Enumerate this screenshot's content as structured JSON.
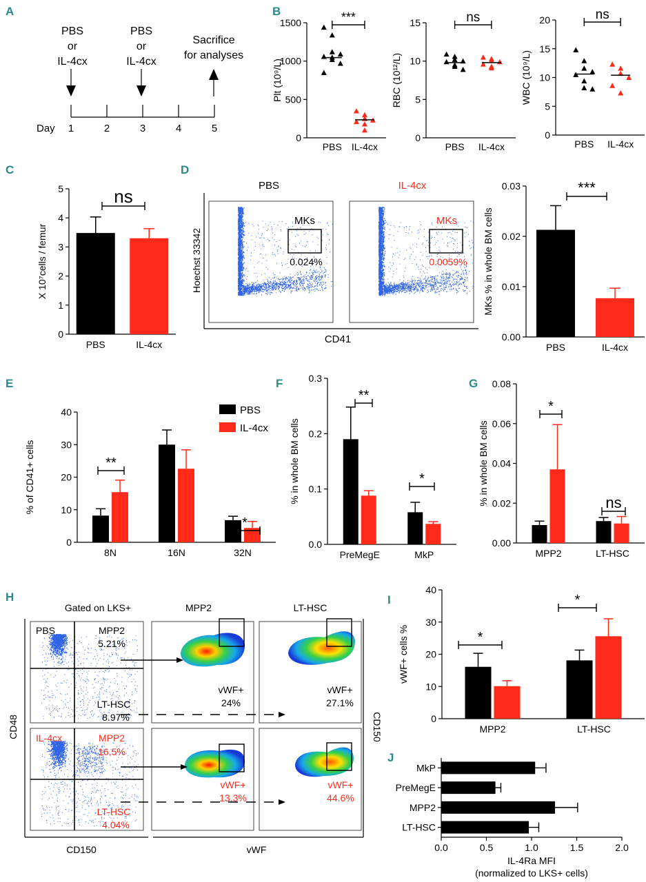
{
  "colors": {
    "pbs": "#000000",
    "il4cx": "#ff2a1a",
    "label": "#2a8a8a",
    "flow": "#2f63e8"
  },
  "panel_labels": [
    "A",
    "B",
    "C",
    "D",
    "E",
    "F",
    "G",
    "H",
    "I",
    "J"
  ],
  "timeline": {
    "inj1": [
      "PBS",
      "or",
      "IL-4cx"
    ],
    "inj2": [
      "PBS",
      "or",
      "IL-4cx"
    ],
    "sac": [
      "Sacrifice",
      "for analyses"
    ],
    "day_label": "Day",
    "days": [
      "1",
      "2",
      "3",
      "4",
      "5"
    ]
  },
  "flowD": {
    "pbs_title": "PBS",
    "il4_title": "IL-4cx",
    "gate_label_pbs": "MKs",
    "gate_label_il4": "MKs",
    "pct_pbs": "0.024%",
    "pct_il4": "0.0059%",
    "ylabel": "Hoechst 33342",
    "xlabel": "CD41"
  },
  "flowH": {
    "gated_on": "Gated on LKS+",
    "mpp2_col": "MPP2",
    "lthsc_col": "LT-HSC",
    "pbs_tag": "PBS",
    "il4_tag": "IL-4cx",
    "pbs_mpp2": [
      "MPP2",
      "5.21%"
    ],
    "pbs_lthsc": [
      "LT-HSC",
      "8.97%"
    ],
    "il4_mpp2": [
      "MPP2",
      "16.5%"
    ],
    "il4_lthsc": [
      "LT-HSC",
      "4.04%"
    ],
    "vwf_pbs_mpp2": [
      "vWF+",
      "24%"
    ],
    "vwf_pbs_lthsc": [
      "vWF+",
      "27.1%"
    ],
    "vwf_il4_mpp2": [
      "vWF+",
      "13.3%"
    ],
    "vwf_il4_lthsc": [
      "vWF+",
      "44.6%"
    ],
    "ylabel": "CD48",
    "xlabel": "CD150",
    "vwf_xlabel": "vWF",
    "right_ylabel": "CD150"
  },
  "chart_data": [
    {
      "id": "B1",
      "type": "scatter",
      "ylabel": "Plt (10⁹/L)",
      "ylim": [
        0,
        1500
      ],
      "yticks": [
        0,
        500,
        1000,
        1500
      ],
      "categories": [
        "PBS",
        "IL-4cx"
      ],
      "sig": "***",
      "series": [
        {
          "name": "PBS",
          "values": [
            1440,
            1340,
            1120,
            1090,
            1060,
            1050,
            1020,
            970,
            850
          ],
          "mean": 1045
        },
        {
          "name": "IL-4cx",
          "values": [
            350,
            300,
            250,
            230,
            210,
            180,
            100
          ],
          "mean": 235
        }
      ]
    },
    {
      "id": "B2",
      "type": "scatter",
      "ylabel": "RBC (10¹²/L)",
      "ylim": [
        0,
        15
      ],
      "yticks": [
        0,
        5,
        10,
        15
      ],
      "categories": [
        "PBS",
        "IL-4cx"
      ],
      "sig": "ns",
      "series": [
        {
          "name": "PBS",
          "values": [
            10.9,
            10.6,
            10.2,
            10.0,
            9.9,
            9.5,
            9.3,
            8.9
          ],
          "mean": 9.8
        },
        {
          "name": "IL-4cx",
          "values": [
            10.5,
            10.3,
            10.1,
            9.9,
            9.6,
            9.3,
            9.1
          ],
          "mean": 9.8
        }
      ]
    },
    {
      "id": "B3",
      "type": "scatter",
      "ylabel": "WBC (10⁹/L)",
      "ylim": [
        0,
        20
      ],
      "yticks": [
        0,
        5,
        10,
        15,
        20
      ],
      "categories": [
        "PBS",
        "IL-4cx"
      ],
      "sig": "ns",
      "series": [
        {
          "name": "PBS",
          "values": [
            14.8,
            12.9,
            11.6,
            11.0,
            10.5,
            9.4,
            8.2,
            8.0
          ],
          "mean": 10.6
        },
        {
          "name": "IL-4cx",
          "values": [
            12.3,
            11.6,
            10.7,
            10.0,
            8.6,
            7.3
          ],
          "mean": 10.4
        }
      ]
    },
    {
      "id": "C",
      "type": "bar",
      "ylabel": "X 10⁷cells / femur",
      "ylim": [
        0,
        5
      ],
      "yticks": [
        0,
        1,
        2,
        3,
        4,
        5
      ],
      "categories": [
        "PBS",
        "IL-4cx"
      ],
      "sig": "ns",
      "values": [
        3.48,
        3.3
      ],
      "errors": [
        0.55,
        0.33
      ]
    },
    {
      "id": "D",
      "type": "bar",
      "ylabel": "MKs % in whole BM cells",
      "ylim": [
        0,
        0.03
      ],
      "yticks": [
        "0.00",
        "0.01",
        "0.02",
        "0.03"
      ],
      "categories": [
        "PBS",
        "IL-4cx"
      ],
      "sig": "***",
      "values": [
        0.0213,
        0.0077
      ],
      "errors": [
        0.0048,
        0.002
      ]
    },
    {
      "id": "E",
      "type": "bar",
      "ylabel": "% of CD41+ cells",
      "ylim": [
        0,
        40
      ],
      "yticks": [
        0,
        10,
        20,
        30,
        40
      ],
      "categories": [
        "8N",
        "16N",
        "32N"
      ],
      "legend": [
        "PBS",
        "IL-4cx"
      ],
      "series": [
        {
          "name": "PBS",
          "values": [
            8.2,
            30,
            6.8
          ],
          "errors": [
            2.1,
            4.5,
            1.2
          ]
        },
        {
          "name": "IL-4cx",
          "values": [
            15.4,
            22.6,
            4.4
          ],
          "errors": [
            3.7,
            5.8,
            2.0
          ]
        }
      ],
      "sig": [
        "**",
        "",
        "*"
      ]
    },
    {
      "id": "F",
      "type": "bar",
      "ylabel": "% in whole BM cells",
      "ylim": [
        0,
        0.3
      ],
      "yticks": [
        "0.0",
        "0.1",
        "0.2",
        "0.3"
      ],
      "categories": [
        "PreMegE",
        "MkP"
      ],
      "series": [
        {
          "name": "PBS",
          "values": [
            0.19,
            0.058
          ],
          "errors": [
            0.058,
            0.018
          ]
        },
        {
          "name": "IL-4cx",
          "values": [
            0.088,
            0.037
          ],
          "errors": [
            0.009,
            0.004
          ]
        }
      ],
      "sig": [
        "**",
        "*"
      ]
    },
    {
      "id": "G",
      "type": "bar",
      "ylabel": "% in whole BM cells",
      "ylim": [
        0,
        0.08
      ],
      "yticks": [
        "0.00",
        "0.02",
        "0.04",
        "0.06",
        "0.08"
      ],
      "categories": [
        "MPP2",
        "LT-HSC"
      ],
      "series": [
        {
          "name": "PBS",
          "values": [
            0.009,
            0.011
          ],
          "errors": [
            0.002,
            0.0018
          ]
        },
        {
          "name": "IL-4cx",
          "values": [
            0.037,
            0.0098
          ],
          "errors": [
            0.0225,
            0.0035
          ]
        }
      ],
      "sig": [
        "*",
        "ns"
      ]
    },
    {
      "id": "I",
      "type": "bar",
      "ylabel": "vWF+ cells %",
      "ylim": [
        0,
        40
      ],
      "yticks": [
        0,
        10,
        20,
        30,
        40
      ],
      "categories": [
        "MPP2",
        "LT-HSC"
      ],
      "series": [
        {
          "name": "PBS",
          "values": [
            16.1,
            18.1
          ],
          "errors": [
            4.2,
            3.2
          ]
        },
        {
          "name": "IL-4cx",
          "values": [
            10.1,
            25.6
          ],
          "errors": [
            1.7,
            5.4
          ]
        }
      ],
      "sig": [
        "*",
        "*"
      ]
    },
    {
      "id": "J",
      "type": "hbar",
      "xlabel": [
        "IL-4Ra MFI",
        "(normalized to LKS+ cells)"
      ],
      "xlim": [
        0,
        2
      ],
      "xticks": [
        "0.0",
        "0.5",
        "1.0",
        "1.5",
        "2.0"
      ],
      "categories": [
        "MkP",
        "PreMegE",
        "MPP2",
        "LT-HSC"
      ],
      "values": [
        1.04,
        0.6,
        1.26,
        0.97
      ],
      "errors": [
        0.12,
        0.06,
        0.25,
        0.11
      ]
    }
  ]
}
